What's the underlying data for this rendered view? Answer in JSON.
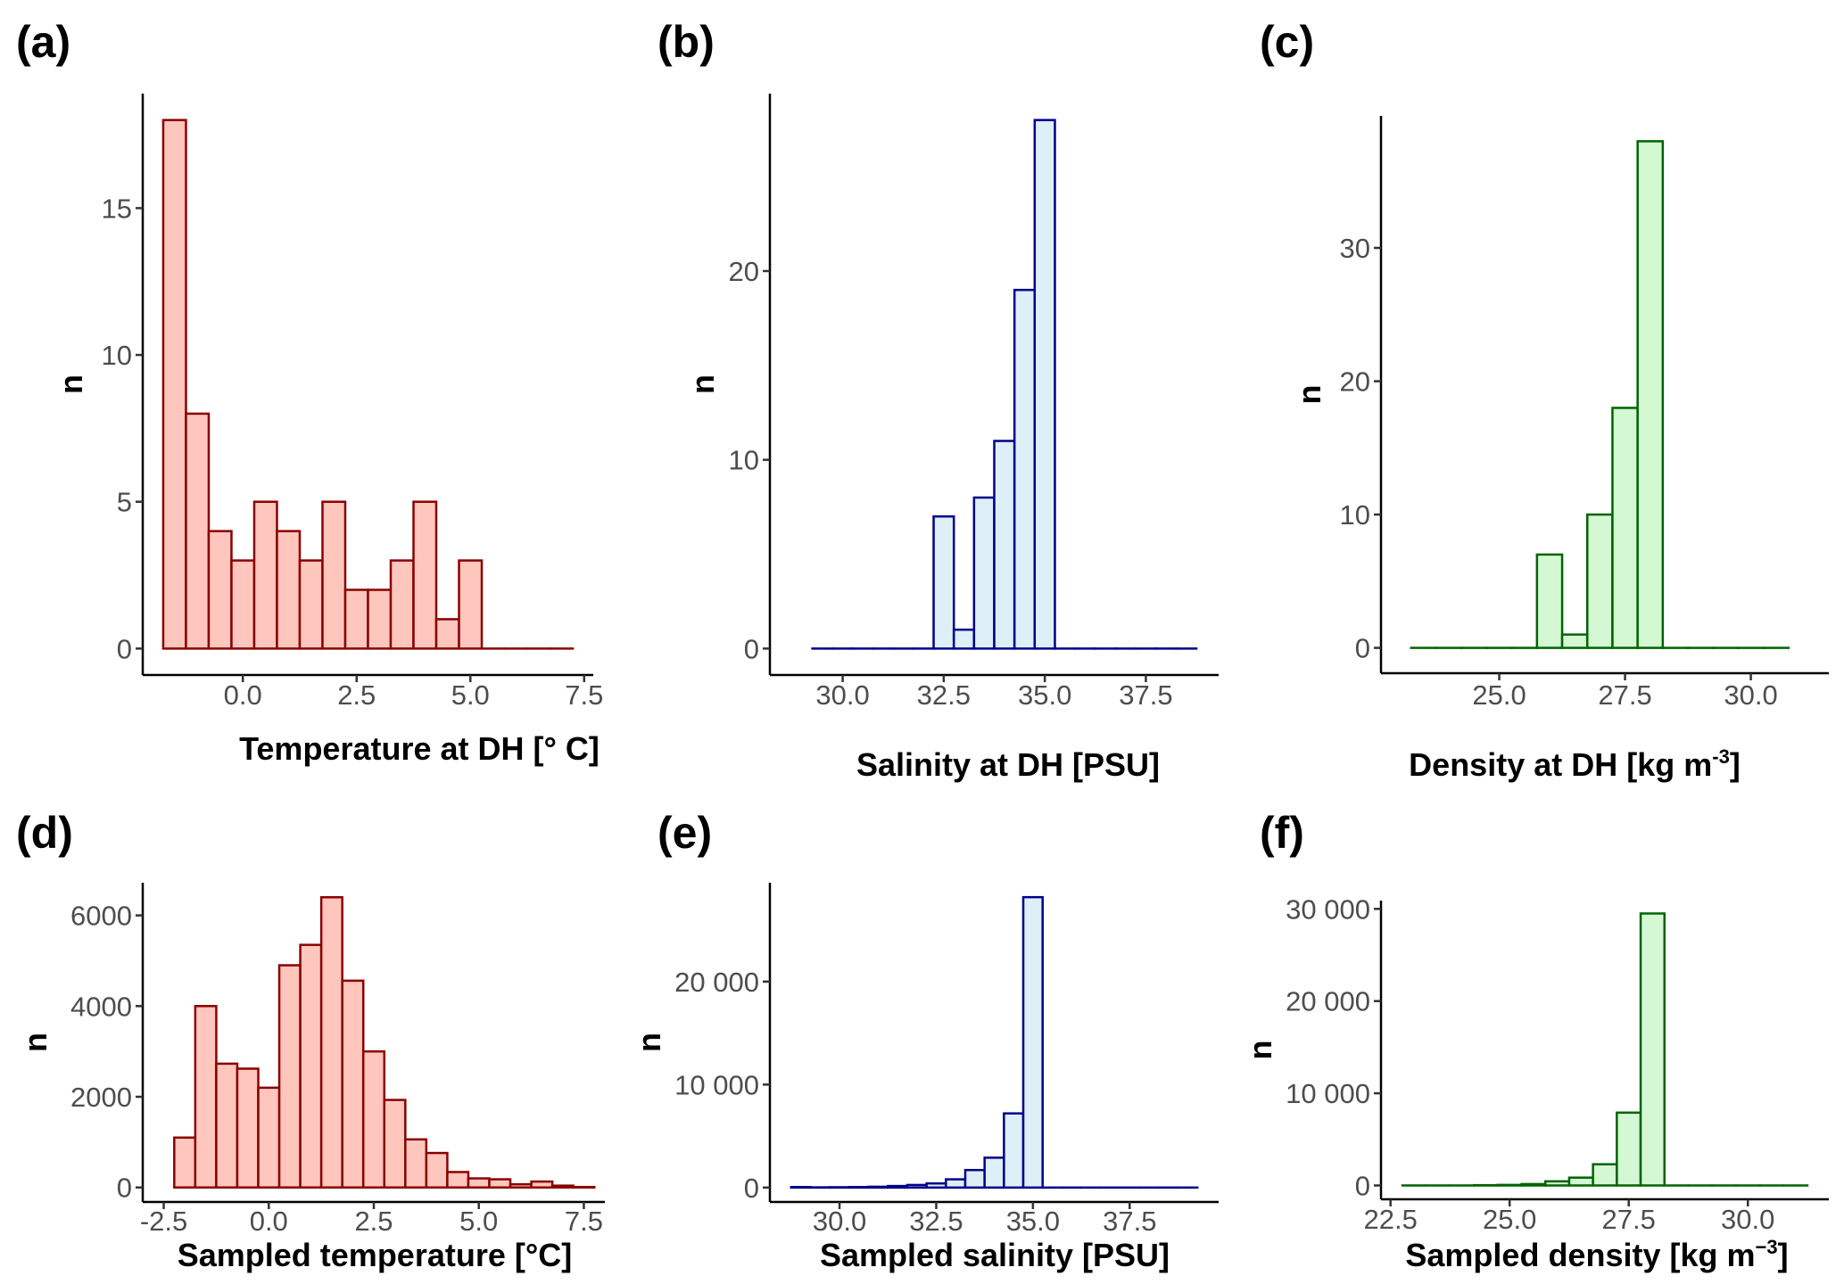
{
  "figure": {
    "panels": [
      "(a)",
      "(b)",
      "(c)",
      "(d)",
      "(e)",
      "(f)"
    ]
  },
  "chart_data": [
    {
      "id": "a",
      "type": "bar",
      "subtype": "histogram",
      "panel_label": "(a)",
      "title": "",
      "xlabel": "Temperature at DH [° C]",
      "ylabel": "n",
      "color_fill": "#ffc6bd",
      "color_stroke": "#8b0000",
      "bin_width": 0.5,
      "bin_centers": [
        -1.5,
        -1.0,
        -0.5,
        0.0,
        0.5,
        1.0,
        1.5,
        2.0,
        2.5,
        3.0,
        3.5,
        4.0,
        4.5,
        5.0,
        5.5,
        6.0,
        6.5,
        7.0
      ],
      "values": [
        18,
        8,
        4,
        3,
        5,
        4,
        3,
        5,
        2,
        2,
        3,
        5,
        1,
        3,
        0,
        0,
        0,
        0
      ],
      "xlim": [
        -2.2,
        7.7
      ],
      "ylim": [
        -0.9,
        18.9
      ],
      "xticks": [
        0.0,
        2.5,
        5.0,
        7.5
      ],
      "xtick_labels": [
        "0.0",
        "2.5",
        "5.0",
        "7.5"
      ],
      "yticks": [
        0,
        5,
        10,
        15
      ],
      "ytick_labels": [
        "0",
        "5",
        "10",
        "15"
      ]
    },
    {
      "id": "b",
      "type": "bar",
      "subtype": "histogram",
      "panel_label": "(b)",
      "title": "",
      "xlabel": "Salinity at DH [PSU]",
      "ylabel": "n",
      "color_fill": "#deeff7",
      "color_stroke": "#00008b",
      "bin_width": 0.5,
      "bin_centers": [
        29.5,
        30.0,
        30.5,
        31.0,
        31.5,
        32.0,
        32.5,
        33.0,
        33.5,
        34.0,
        34.5,
        35.0,
        35.5,
        36.0,
        36.5,
        37.0,
        37.5,
        38.0,
        38.5
      ],
      "values": [
        0,
        0,
        0,
        0,
        0,
        0,
        7,
        1,
        8,
        11,
        19,
        28,
        0,
        0,
        0,
        0,
        0,
        0,
        0
      ],
      "xlim": [
        28.2,
        39.3
      ],
      "ylim": [
        -1.4,
        29.4
      ],
      "xticks": [
        30.0,
        32.5,
        35.0,
        37.5
      ],
      "xtick_labels": [
        "30.0",
        "32.5",
        "35.0",
        "37.5"
      ],
      "yticks": [
        0,
        10,
        20
      ],
      "ytick_labels": [
        "0",
        "10",
        "20"
      ]
    },
    {
      "id": "c",
      "type": "bar",
      "subtype": "histogram",
      "panel_label": "(c)",
      "title": "",
      "xlabel": "Density at DH [kg m",
      "xlabel_sup": "-3",
      "xlabel_end": "]",
      "ylabel": "n",
      "color_fill": "#d4f7d4",
      "color_stroke": "#006400",
      "bin_width": 0.5,
      "bin_centers": [
        23.5,
        24.0,
        24.5,
        25.0,
        25.5,
        26.0,
        26.5,
        27.0,
        27.5,
        28.0,
        28.5,
        29.0,
        29.5,
        30.0,
        30.5
      ],
      "values": [
        0,
        0,
        0,
        0,
        0,
        7,
        1,
        10,
        18,
        38,
        0,
        0,
        0,
        0,
        0
      ],
      "xlim": [
        22.65,
        31.55
      ],
      "ylim": [
        -1.9,
        39.9
      ],
      "xticks": [
        25.0,
        27.5,
        30.0
      ],
      "xtick_labels": [
        "25.0",
        "27.5",
        "30.0"
      ],
      "yticks": [
        0,
        10,
        20,
        30
      ],
      "ytick_labels": [
        "0",
        "10",
        "20",
        "30"
      ]
    },
    {
      "id": "d",
      "type": "bar",
      "subtype": "histogram",
      "panel_label": "(d)",
      "title": "",
      "xlabel": "Sampled temperature [°C]",
      "ylabel": "n",
      "color_fill": "#ffc6bd",
      "color_stroke": "#8b0000",
      "bin_width": 0.5,
      "bin_centers": [
        -2.0,
        -1.5,
        -1.0,
        -0.5,
        0.0,
        0.5,
        1.0,
        1.5,
        2.0,
        2.5,
        3.0,
        3.5,
        4.0,
        4.5,
        5.0,
        5.5,
        6.0,
        6.5,
        7.0,
        7.5
      ],
      "values": [
        1100,
        4000,
        2730,
        2620,
        2200,
        4900,
        5350,
        6400,
        4560,
        3000,
        1930,
        1060,
        760,
        340,
        200,
        180,
        70,
        130,
        40,
        10
      ],
      "xlim": [
        -3.0,
        8.0
      ],
      "ylim": [
        -320,
        6720
      ],
      "xticks": [
        -2.5,
        0.0,
        2.5,
        5.0,
        7.5
      ],
      "xtick_labels": [
        "-2.5",
        "0.0",
        "2.5",
        "5.0",
        "7.5"
      ],
      "yticks": [
        0,
        2000,
        4000,
        6000
      ],
      "ytick_labels": [
        "0",
        "2000",
        "4000",
        "6000"
      ]
    },
    {
      "id": "e",
      "type": "bar",
      "subtype": "histogram",
      "panel_label": "(e)",
      "title": "",
      "xlabel": "Sampled salinity [PSU]",
      "ylabel": "n",
      "color_fill": "#deeff7",
      "color_stroke": "#00008b",
      "bin_width": 0.5,
      "bin_centers": [
        29.0,
        29.5,
        30.0,
        30.5,
        31.0,
        31.5,
        32.0,
        32.5,
        33.0,
        33.5,
        34.0,
        34.5,
        35.0,
        35.5,
        36.0,
        36.5,
        37.0,
        37.5,
        38.0,
        38.5,
        39.0
      ],
      "values": [
        50,
        20,
        30,
        50,
        80,
        150,
        250,
        400,
        800,
        1700,
        2900,
        7200,
        28200,
        0,
        0,
        0,
        0,
        0,
        0,
        0,
        0
      ],
      "xlim": [
        28.2,
        39.8
      ],
      "ylim": [
        -1400,
        29600
      ],
      "xticks": [
        30.0,
        32.5,
        35.0,
        37.5
      ],
      "xtick_labels": [
        "30.0",
        "32.5",
        "35.0",
        "37.5"
      ],
      "yticks": [
        0,
        10000,
        20000
      ],
      "ytick_labels": [
        "0",
        "10 000",
        "20 000"
      ]
    },
    {
      "id": "f",
      "type": "bar",
      "subtype": "histogram",
      "panel_label": "(f)",
      "title": "",
      "xlabel": "Sampled density [kg m",
      "xlabel_sup": "−3",
      "xlabel_end": "]",
      "ylabel": "n",
      "color_fill": "#d4f7d4",
      "color_stroke": "#006400",
      "bin_width": 0.5,
      "bin_centers": [
        23.0,
        23.5,
        24.0,
        24.5,
        25.0,
        25.5,
        26.0,
        26.5,
        27.0,
        27.5,
        28.0,
        28.5,
        29.0,
        29.5,
        30.0,
        30.5,
        31.0
      ],
      "values": [
        0,
        0,
        0,
        30,
        60,
        150,
        450,
        850,
        2300,
        7900,
        29500,
        0,
        0,
        0,
        0,
        0,
        0
      ],
      "xlim": [
        22.3,
        31.7
      ],
      "ylim": [
        -1500,
        30900
      ],
      "xticks": [
        22.5,
        25.0,
        27.5,
        30.0
      ],
      "xtick_labels": [
        "22.5",
        "25.0",
        "27.5",
        "30.0"
      ],
      "yticks": [
        0,
        10000,
        20000,
        30000
      ],
      "ytick_labels": [
        "0",
        "10 000",
        "20 000",
        "30 000"
      ]
    }
  ]
}
